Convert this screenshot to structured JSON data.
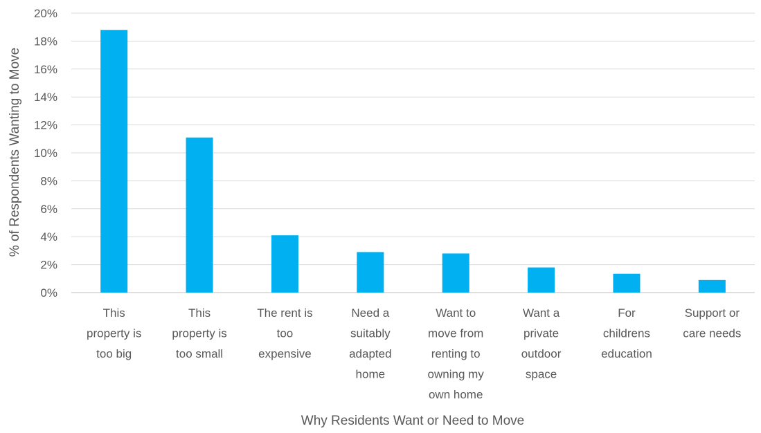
{
  "chart_data": {
    "type": "bar",
    "title": "",
    "xlabel": "Why Residents Want or Need to Move",
    "ylabel": "% of Respondents Wanting to Move",
    "ylim": [
      0,
      20
    ],
    "ytick_step": 2,
    "ytick_suffix": "%",
    "grid": true,
    "legend": "none",
    "bar_color": "#00b0f0",
    "categories": [
      [
        "This",
        "property is",
        "too big"
      ],
      [
        "This",
        "property is",
        "too small"
      ],
      [
        "The rent is",
        "too",
        "expensive"
      ],
      [
        "Need a",
        "suitably",
        "adapted",
        "home"
      ],
      [
        "Want to",
        "move from",
        "renting to",
        "owning my",
        "own home"
      ],
      [
        "Want a",
        "private",
        "outdoor",
        "space"
      ],
      [
        "For",
        "childrens",
        "education"
      ],
      [
        "Support or",
        "care needs"
      ]
    ],
    "values": [
      18.8,
      11.1,
      4.1,
      2.9,
      2.8,
      1.8,
      1.35,
      0.9
    ]
  }
}
